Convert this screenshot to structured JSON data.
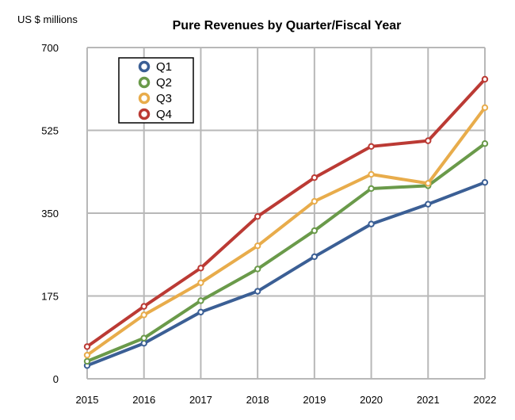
{
  "chart_data": {
    "type": "line",
    "title": "Pure Revenues by Quarter/Fiscal Year",
    "ylabel": "US $ millions",
    "xlabel": "",
    "categories": [
      "2015",
      "2016",
      "2017",
      "2018",
      "2019",
      "2020",
      "2021",
      "2022"
    ],
    "ylim": [
      0,
      700
    ],
    "yticks": [
      0,
      175,
      350,
      525,
      700
    ],
    "grid": true,
    "legend_position": "top-left",
    "series": [
      {
        "name": "Q1",
        "color": "#3b5f95",
        "values": [
          28,
          75,
          141,
          185,
          258,
          327,
          369,
          415
        ]
      },
      {
        "name": "Q2",
        "color": "#6a9a4a",
        "values": [
          37,
          86,
          165,
          232,
          313,
          402,
          408,
          497
        ]
      },
      {
        "name": "Q3",
        "color": "#e8ac4b",
        "values": [
          50,
          135,
          203,
          281,
          375,
          432,
          413,
          573
        ]
      },
      {
        "name": "Q4",
        "color": "#bb3a34",
        "values": [
          68,
          153,
          234,
          343,
          425,
          491,
          503,
          633
        ]
      }
    ]
  }
}
